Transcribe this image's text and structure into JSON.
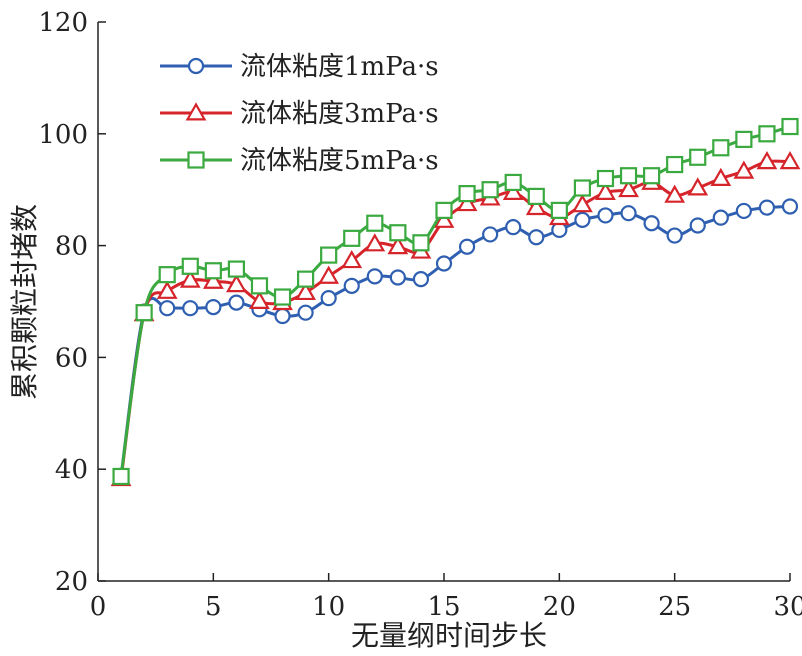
{
  "chart_data": {
    "type": "line",
    "title": "",
    "xlabel": "无量纲时间步长",
    "ylabel": "累积颗粒封堵数",
    "xlim": [
      0,
      30
    ],
    "ylim": [
      20,
      120
    ],
    "x_ticks": [
      "0",
      "5",
      "10",
      "15",
      "20",
      "25",
      "30"
    ],
    "y_ticks": [
      "20",
      "40",
      "60",
      "80",
      "100",
      "120"
    ],
    "grid": false,
    "legend_position": "top-left",
    "x": [
      1,
      2,
      3,
      4,
      5,
      6,
      7,
      8,
      9,
      10,
      11,
      12,
      13,
      14,
      15,
      16,
      17,
      18,
      19,
      20,
      21,
      22,
      23,
      24,
      25,
      26,
      27,
      28,
      29,
      30
    ],
    "series": [
      {
        "name": "流体粘度1mPa·s",
        "color": "#2f5fb0",
        "marker": "circle",
        "values": [
          38.8,
          68.2,
          68.8,
          68.8,
          69.0,
          69.8,
          68.6,
          67.4,
          68.0,
          70.6,
          72.8,
          74.5,
          74.3,
          74.0,
          76.8,
          79.8,
          82.0,
          83.3,
          81.5,
          82.8,
          84.6,
          85.4,
          85.8,
          84.0,
          81.8,
          83.6,
          85.0,
          86.2,
          86.8,
          87.0
        ]
      },
      {
        "name": "流体粘度3mPa·s",
        "color": "#d6242b",
        "marker": "triangle",
        "values": [
          38.3,
          67.8,
          71.8,
          73.8,
          73.6,
          73.0,
          70.0,
          69.8,
          71.6,
          74.5,
          77.3,
          80.3,
          79.8,
          79.0,
          84.5,
          87.5,
          88.5,
          89.5,
          86.8,
          85.0,
          87.3,
          89.5,
          90.0,
          91.3,
          89.0,
          90.3,
          92.0,
          93.3,
          95.0,
          95.0
        ]
      },
      {
        "name": "流体粘度5mPa·s",
        "color": "#3aa93f",
        "marker": "square",
        "values": [
          38.7,
          68.0,
          74.8,
          76.3,
          75.5,
          75.8,
          72.8,
          70.8,
          74.0,
          78.3,
          81.3,
          84.0,
          82.3,
          80.5,
          86.3,
          89.3,
          90.0,
          91.3,
          88.8,
          86.3,
          90.3,
          92.0,
          92.5,
          92.5,
          94.5,
          95.8,
          97.5,
          99.0,
          100.0,
          101.3
        ]
      }
    ]
  }
}
